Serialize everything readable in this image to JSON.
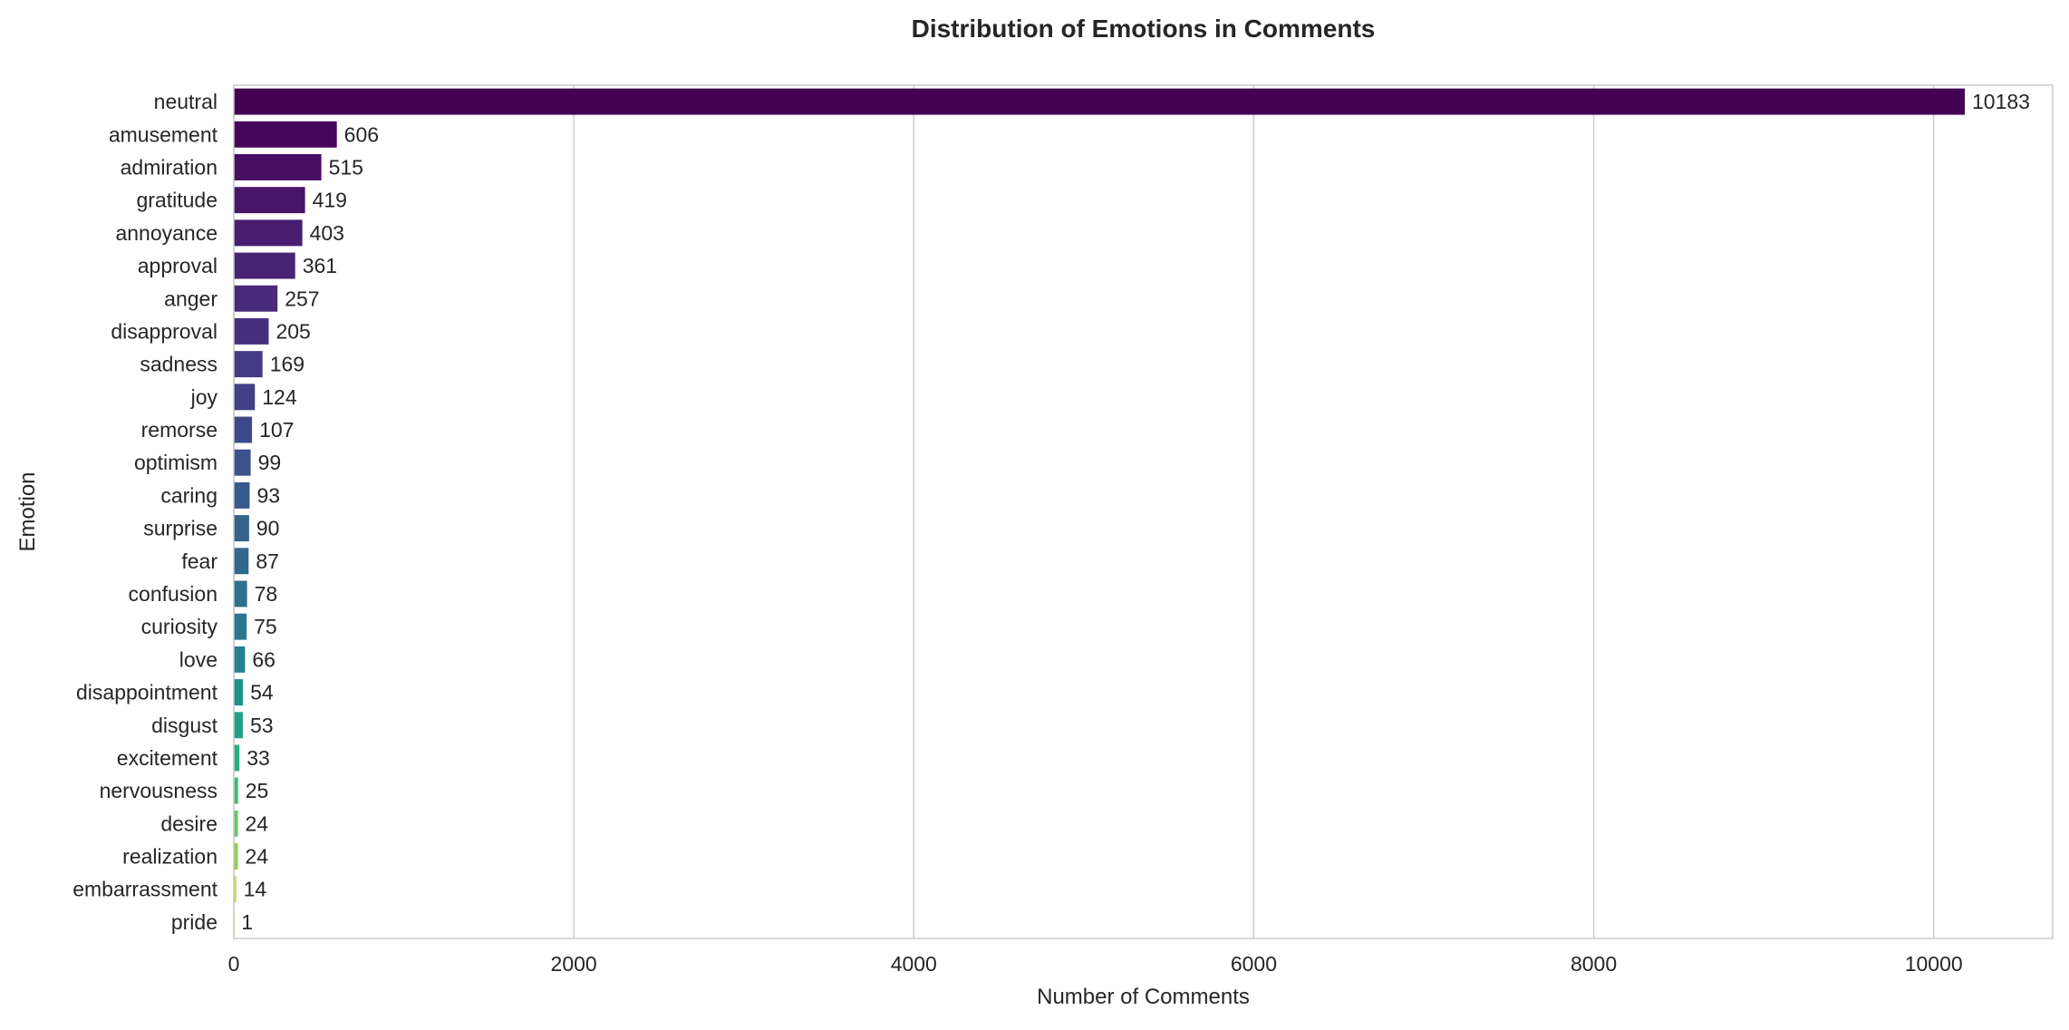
{
  "chart_data": {
    "type": "bar",
    "orientation": "horizontal",
    "title": "Distribution of Emotions in Comments",
    "xlabel": "Number of Comments",
    "ylabel": "Emotion",
    "xlim": [
      0,
      10700
    ],
    "xticks": [
      0,
      2000,
      4000,
      6000,
      8000,
      10000
    ],
    "grid": "vertical",
    "categories": [
      "neutral",
      "amusement",
      "admiration",
      "gratitude",
      "annoyance",
      "approval",
      "anger",
      "disapproval",
      "sadness",
      "joy",
      "remorse",
      "optimism",
      "caring",
      "surprise",
      "fear",
      "confusion",
      "curiosity",
      "love",
      "disappointment",
      "disgust",
      "excitement",
      "nervousness",
      "desire",
      "realization",
      "embarrassment",
      "pride"
    ],
    "values": [
      10183,
      606,
      515,
      419,
      403,
      361,
      257,
      205,
      169,
      124,
      107,
      99,
      93,
      90,
      87,
      78,
      75,
      66,
      54,
      53,
      33,
      25,
      24,
      24,
      14,
      1
    ],
    "colors": [
      "#440154",
      "#46075a",
      "#470e61",
      "#481668",
      "#481c6e",
      "#482374",
      "#472a7a",
      "#46307e",
      "#443983",
      "#424086",
      "#3e4989",
      "#3b528b",
      "#37598c",
      "#33628d",
      "#30688e",
      "#2c728e",
      "#29788e",
      "#26828e",
      "#21918c",
      "#1fa188",
      "#28ae80",
      "#3bbb75",
      "#5ec962",
      "#85d54a",
      "#b5de2b",
      "#fde725"
    ]
  }
}
